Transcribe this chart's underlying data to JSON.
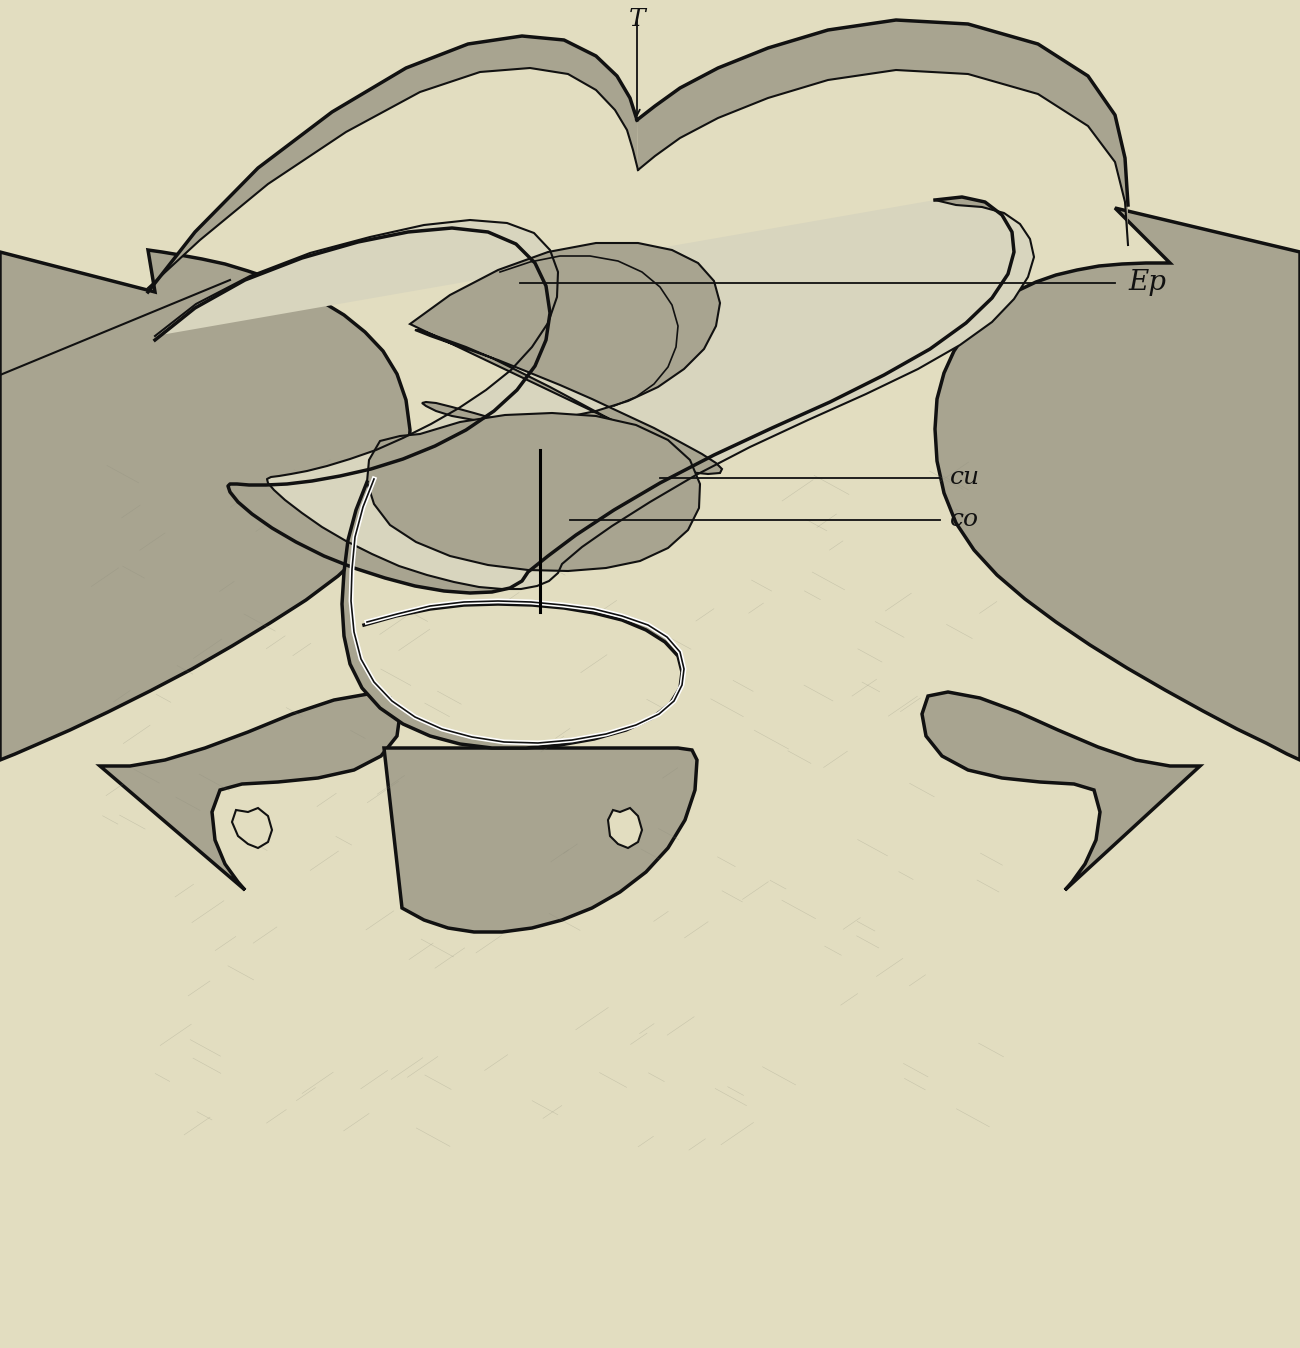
{
  "bg_color": "#e2ddc0",
  "tissue_color": "#a8a490",
  "tissue_dark": "#7a7868",
  "tissue_light": "#c8c4b0",
  "lumen_color": "#d8d5be",
  "line_color": "#111111",
  "label_T": "T",
  "label_Ep": "Ep",
  "label_cu": "cu",
  "label_co": "co",
  "lw_main": 2.5,
  "lw_thin": 1.5,
  "figw": 13.0,
  "figh": 13.48,
  "dpi": 100
}
